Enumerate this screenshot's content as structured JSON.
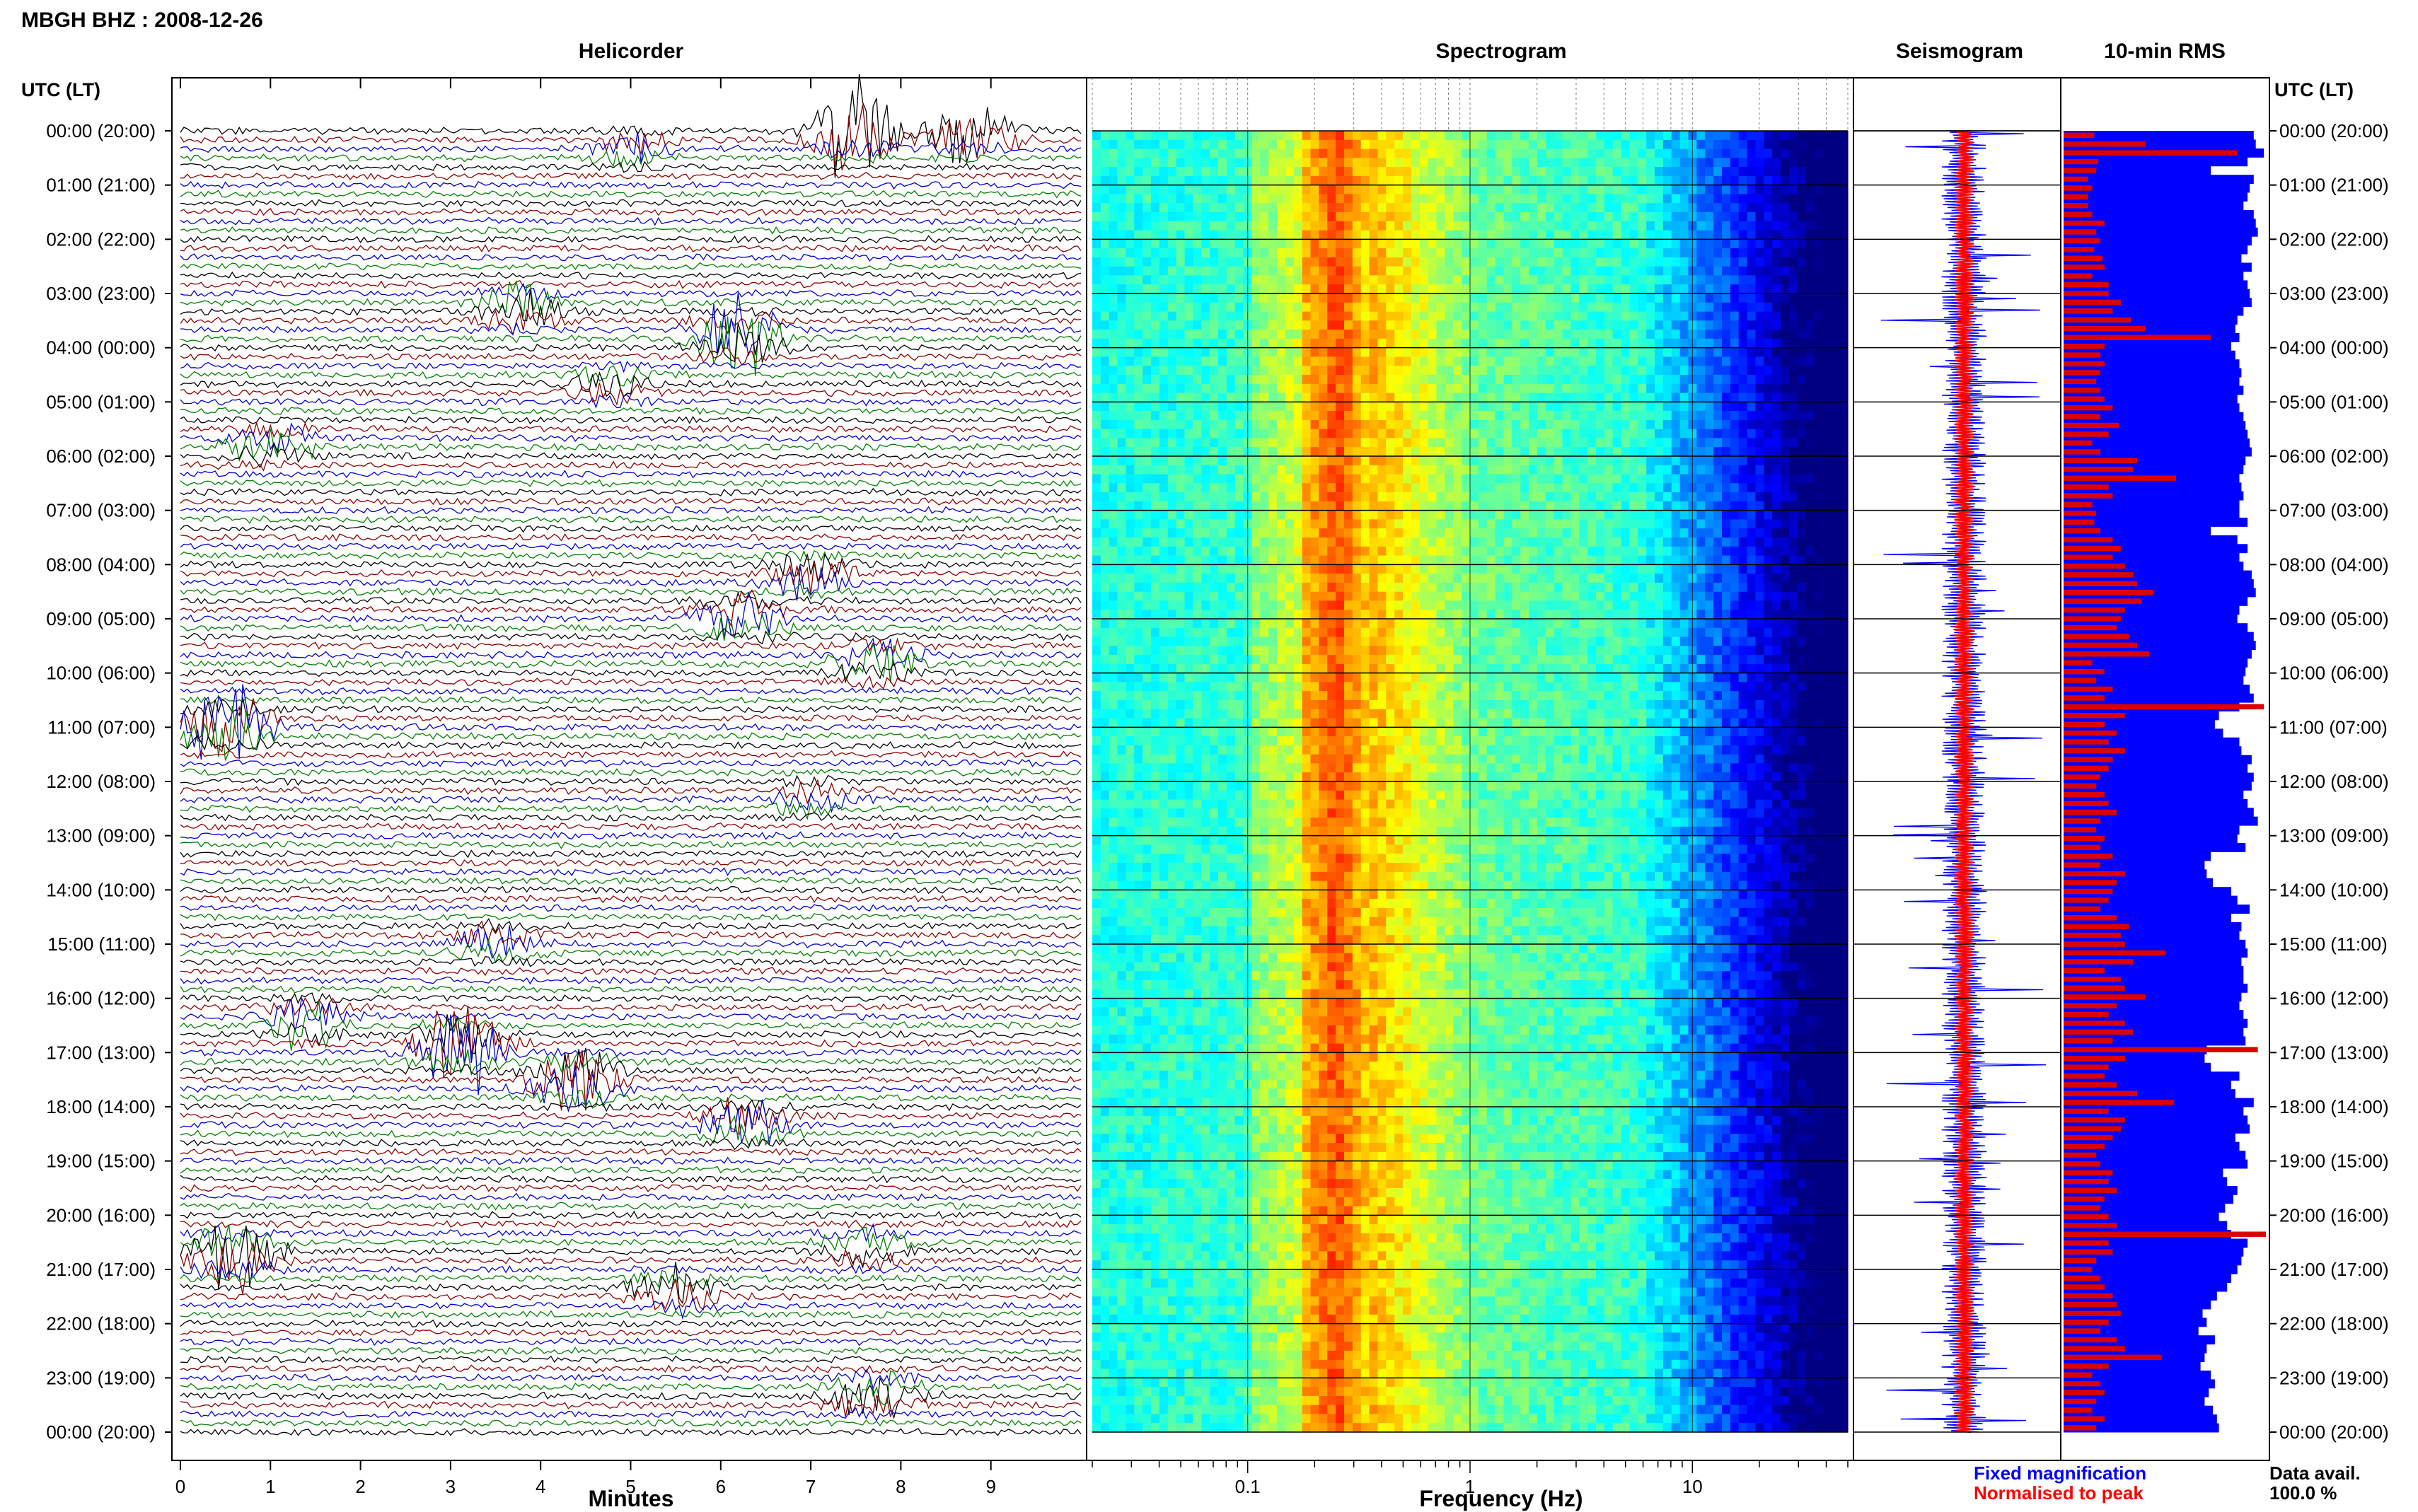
{
  "header": {
    "station_title": "MBGH BHZ : 2008-12-26",
    "utc_label_left": "UTC (LT)",
    "utc_label_right": "UTC (LT)"
  },
  "panels": {
    "helicorder": "Helicorder",
    "spectrogram": "Spectrogram",
    "seismogram": "Seismogram",
    "rms": "10-min RMS"
  },
  "axes": {
    "minutes_label": "Minutes",
    "frequency_label": "Frequency (Hz)"
  },
  "legend": {
    "fixed": "Fixed magnification",
    "normalised": "Normalised to peak",
    "fixed_color": "#0000ff",
    "normalised_color": "#ff0000"
  },
  "data_avail": {
    "label": "Data avail.",
    "value": "100.0 %"
  },
  "colors": {
    "trace_cycle": [
      "#000000",
      "#8b0000",
      "#0000cd",
      "#008000"
    ],
    "rms_fixed": "#0000ff",
    "rms_normalised": "#dd0000"
  },
  "chart_data": {
    "type": "heatmap",
    "time_labels": [
      "00:00 (20:00)",
      "01:00 (21:00)",
      "02:00 (22:00)",
      "03:00 (23:00)",
      "04:00 (00:00)",
      "05:00 (01:00)",
      "06:00 (02:00)",
      "07:00 (03:00)",
      "08:00 (04:00)",
      "09:00 (05:00)",
      "10:00 (06:00)",
      "11:00 (07:00)",
      "12:00 (08:00)",
      "13:00 (09:00)",
      "14:00 (10:00)",
      "15:00 (11:00)",
      "16:00 (12:00)",
      "17:00 (13:00)",
      "18:00 (14:00)",
      "19:00 (15:00)",
      "20:00 (16:00)",
      "21:00 (17:00)",
      "22:00 (18:00)",
      "23:00 (19:00)",
      "00:00 (20:00)"
    ],
    "helicorder": {
      "x_ticks": [
        "0",
        "1",
        "2",
        "3",
        "4",
        "5",
        "6",
        "7",
        "8",
        "9"
      ],
      "xlim": [
        0,
        10
      ],
      "lines_per_hour": 6,
      "events": [
        {
          "hour": 0.0,
          "minute": 7.5,
          "amp": 3.2
        },
        {
          "hour": 0.0,
          "minute": 8.8,
          "amp": 2.0
        },
        {
          "hour": 0.3,
          "minute": 5.0,
          "amp": 0.8
        },
        {
          "hour": 3.3,
          "minute": 3.8,
          "amp": 1.4
        },
        {
          "hour": 3.8,
          "minute": 6.2,
          "amp": 2.4
        },
        {
          "hour": 4.7,
          "minute": 4.8,
          "amp": 0.9
        },
        {
          "hour": 5.8,
          "minute": 1.0,
          "amp": 1.2
        },
        {
          "hour": 8.2,
          "minute": 7.0,
          "amp": 1.3
        },
        {
          "hour": 9.0,
          "minute": 6.2,
          "amp": 1.5
        },
        {
          "hour": 9.8,
          "minute": 7.7,
          "amp": 1.3
        },
        {
          "hour": 11.0,
          "minute": 0.5,
          "amp": 2.6
        },
        {
          "hour": 12.3,
          "minute": 7.0,
          "amp": 0.7
        },
        {
          "hour": 15.0,
          "minute": 3.5,
          "amp": 1.0
        },
        {
          "hour": 16.4,
          "minute": 1.4,
          "amp": 1.4
        },
        {
          "hour": 16.9,
          "minute": 3.1,
          "amp": 3.0
        },
        {
          "hour": 17.5,
          "minute": 4.4,
          "amp": 2.6
        },
        {
          "hour": 18.3,
          "minute": 6.3,
          "amp": 1.4
        },
        {
          "hour": 20.7,
          "minute": 0.6,
          "amp": 2.2
        },
        {
          "hour": 21.4,
          "minute": 5.5,
          "amp": 1.3
        },
        {
          "hour": 20.6,
          "minute": 7.6,
          "amp": 1.0
        },
        {
          "hour": 23.3,
          "minute": 7.7,
          "amp": 1.6
        }
      ]
    },
    "spectrogram": {
      "scale": "log",
      "x_ticks": [
        "0.1",
        "1",
        "10"
      ],
      "xlim": [
        0.02,
        50
      ],
      "colormap": "jet",
      "peak_band_hz": [
        0.18,
        0.35
      ],
      "secondary_band_hz": [
        2,
        5
      ]
    },
    "seismogram": {
      "series": [
        {
          "name": "Fixed magnification",
          "color": "#0000ff"
        },
        {
          "name": "Normalised to peak",
          "color": "#ff0000"
        }
      ]
    },
    "rms": {
      "bins_per_hour": 6,
      "fixed_level": [
        0.93,
        0.94,
        0.98,
        0.9,
        0.72,
        0.93,
        0.91,
        0.9,
        0.88,
        0.93,
        0.94,
        0.95,
        0.92,
        0.9,
        0.87,
        0.92,
        0.88,
        0.9,
        0.91,
        0.92,
        0.88,
        0.85,
        0.84,
        0.86,
        0.82,
        0.84,
        0.86,
        0.87,
        0.86,
        0.88,
        0.85,
        0.86,
        0.88,
        0.89,
        0.9,
        0.91,
        0.92,
        0.89,
        0.88,
        0.86,
        0.87,
        0.88,
        0.86,
        0.86,
        0.9,
        0.72,
        0.85,
        0.9,
        0.86,
        0.88,
        0.92,
        0.93,
        0.94,
        0.9,
        0.86,
        0.85,
        0.9,
        0.93,
        0.94,
        0.92,
        0.9,
        0.89,
        0.88,
        0.91,
        0.93,
        0.86,
        0.76,
        0.74,
        0.78,
        0.86,
        0.87,
        0.92,
        0.9,
        0.93,
        0.92,
        0.88,
        0.9,
        0.93,
        0.95,
        0.86,
        0.85,
        0.89,
        0.72,
        0.69,
        0.7,
        0.73,
        0.82,
        0.85,
        0.91,
        0.82,
        0.87,
        0.86,
        0.89,
        0.9,
        0.87,
        0.88,
        0.88,
        0.9,
        0.87,
        0.86,
        0.88,
        0.9,
        0.88,
        0.89,
        0.7,
        0.69,
        0.72,
        0.86,
        0.82,
        0.84,
        0.93,
        0.88,
        0.9,
        0.91,
        0.84,
        0.86,
        0.89,
        0.9,
        0.78,
        0.8,
        0.85,
        0.83,
        0.79,
        0.76,
        0.8,
        0.82,
        0.9,
        0.88,
        0.87,
        0.85,
        0.82,
        0.8,
        0.75,
        0.72,
        0.68,
        0.7,
        0.66,
        0.74,
        0.7,
        0.69,
        0.67,
        0.72,
        0.74,
        0.71,
        0.69,
        0.73,
        0.75,
        0.76
      ],
      "normalised_level": [
        0.15,
        0.4,
        0.85,
        0.17,
        0.16,
        0.12,
        0.14,
        0.12,
        0.12,
        0.14,
        0.2,
        0.16,
        0.18,
        0.15,
        0.19,
        0.2,
        0.14,
        0.22,
        0.22,
        0.28,
        0.24,
        0.33,
        0.4,
        0.72,
        0.2,
        0.18,
        0.2,
        0.18,
        0.16,
        0.18,
        0.2,
        0.24,
        0.18,
        0.27,
        0.22,
        0.14,
        0.18,
        0.36,
        0.34,
        0.55,
        0.22,
        0.24,
        0.14,
        0.16,
        0.15,
        0.18,
        0.24,
        0.28,
        0.24,
        0.3,
        0.34,
        0.36,
        0.44,
        0.38,
        0.3,
        0.28,
        0.26,
        0.32,
        0.36,
        0.42,
        0.14,
        0.2,
        0.16,
        0.24,
        0.2,
        0.98,
        0.3,
        0.2,
        0.26,
        0.22,
        0.3,
        0.24,
        0.22,
        0.18,
        0.16,
        0.2,
        0.22,
        0.26,
        0.18,
        0.16,
        0.2,
        0.18,
        0.24,
        0.18,
        0.3,
        0.26,
        0.24,
        0.22,
        0.18,
        0.26,
        0.32,
        0.28,
        0.3,
        0.5,
        0.34,
        0.2,
        0.28,
        0.3,
        0.4,
        0.26,
        0.22,
        0.3,
        0.34,
        0.24,
        0.95,
        0.3,
        0.22,
        0.2,
        0.26,
        0.36,
        0.54,
        0.22,
        0.3,
        0.28,
        0.24,
        0.2,
        0.16,
        0.18,
        0.24,
        0.22,
        0.26,
        0.2,
        0.18,
        0.22,
        0.26,
        0.99,
        0.22,
        0.24,
        0.16,
        0.14,
        0.18,
        0.2,
        0.24,
        0.26,
        0.28,
        0.22,
        0.18,
        0.26,
        0.3,
        0.48,
        0.22,
        0.14,
        0.18,
        0.2,
        0.16,
        0.14,
        0.2,
        0.16
      ]
    }
  }
}
